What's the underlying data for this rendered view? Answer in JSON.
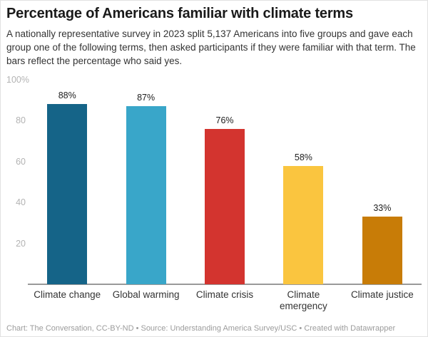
{
  "header": {
    "title": "Percentage of Americans familiar with climate terms",
    "description": "A nationally representative survey in 2023 split 5,137 Americans into five groups and gave each group one of the following terms, then asked participants if they were familiar with that term. The bars reflect the percentage who said yes."
  },
  "chart_data": {
    "type": "bar",
    "title": "Percentage of Americans familiar with climate terms",
    "categories": [
      "Climate change",
      "Global warming",
      "Climate crisis",
      "Climate emergency",
      "Climate justice"
    ],
    "values": [
      88,
      87,
      76,
      58,
      33
    ],
    "value_labels": [
      "88%",
      "87%",
      "76%",
      "58%",
      "33%"
    ],
    "bar_colors": [
      "#156488",
      "#39a6c9",
      "#d3342f",
      "#fac53f",
      "#c87c07"
    ],
    "xlabel": "",
    "ylabel": "",
    "ylim": [
      0,
      100
    ],
    "y_ticks": [
      100,
      80,
      60,
      40,
      20
    ],
    "y_tick_labels": [
      "100%",
      "80",
      "60",
      "40",
      "20"
    ],
    "grid": false,
    "legend": "none"
  },
  "footer": {
    "credit": "Chart: The Conversation, CC-BY-ND • Source: Understanding America Survey/USC • Created with Datawrapper"
  },
  "colors": {
    "background": "#ffffff",
    "title": "#1a1a1a",
    "description": "#333333",
    "axis_label": "#b3b3b3",
    "category_label": "#333333",
    "value_label": "#1d1d1d",
    "baseline": "#9a9a9a",
    "footer": "#9c9c9c"
  }
}
